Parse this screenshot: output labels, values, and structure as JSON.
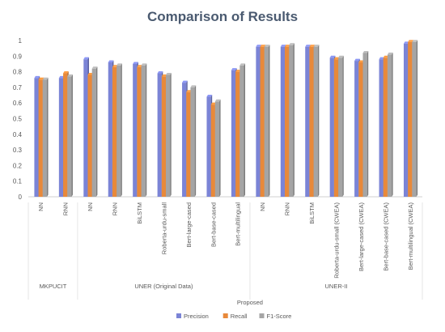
{
  "chart_data": {
    "type": "bar",
    "title": "Comparison of Results",
    "xlabel": "",
    "ylabel": "",
    "ylim": [
      0,
      1
    ],
    "yticks": [
      "0",
      "0.1",
      "0.2",
      "0.3",
      "0.4",
      "0.5",
      "0.6",
      "0.7",
      "0.8",
      "0.9",
      "1"
    ],
    "grid": false,
    "legend_position": "bottom",
    "categories": [
      "NN",
      "RNN",
      "NN",
      "RNN",
      "BiLSTM",
      "Roberta-urdu-small",
      "Bert-large-cased",
      "Bert-base-cased",
      "Bert-multilingual",
      "NN",
      "RNN",
      "BiLSTM",
      "Roberta-urdu-small (CWEA)",
      "Bert-large-cased (CWEA)",
      "Bert-base-cased (CWEA)",
      "Bert-multilingual (CWEA)"
    ],
    "groups": [
      {
        "label": "MKPUCIT",
        "start": 0,
        "end": 1
      },
      {
        "label": "UNER (Original Data)",
        "start": 2,
        "end": 8
      },
      {
        "label": "UNER-II",
        "start": 9,
        "end": 15
      }
    ],
    "outer_group_label": "Proposed",
    "series": [
      {
        "name": "Precision",
        "color": "#7b84d6",
        "values": [
          0.76,
          0.76,
          0.88,
          0.86,
          0.85,
          0.79,
          0.73,
          0.64,
          0.81,
          0.96,
          0.96,
          0.96,
          0.89,
          0.87,
          0.88,
          0.98
        ]
      },
      {
        "name": "Recall",
        "color": "#e8893a",
        "values": [
          0.75,
          0.79,
          0.78,
          0.83,
          0.83,
          0.77,
          0.67,
          0.59,
          0.8,
          0.96,
          0.96,
          0.96,
          0.88,
          0.86,
          0.89,
          0.99
        ]
      },
      {
        "name": "F1-Score",
        "color": "#a5a5a5",
        "values": [
          0.75,
          0.77,
          0.82,
          0.84,
          0.84,
          0.78,
          0.7,
          0.61,
          0.84,
          0.96,
          0.97,
          0.96,
          0.89,
          0.92,
          0.91,
          0.99
        ]
      }
    ]
  }
}
